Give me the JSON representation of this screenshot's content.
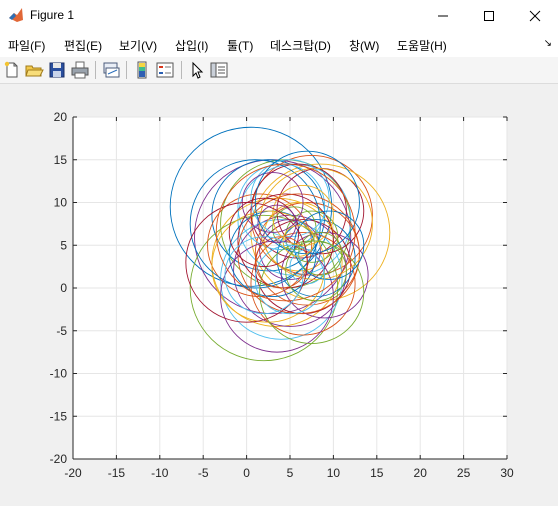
{
  "window": {
    "title": "Figure 1"
  },
  "menu": {
    "items": [
      "파일(F)",
      "편집(E)",
      "보기(V)",
      "삽입(I)",
      "툴(T)",
      "데스크탑(D)",
      "창(W)",
      "도움말(H)"
    ],
    "overflow_glyph": "↘"
  },
  "toolbar": {
    "buttons": [
      "new-figure-icon",
      "open-file-icon",
      "save-icon",
      "print-icon",
      "link-plot-icon",
      "colorbar-icon",
      "legend-icon",
      "pointer-icon",
      "property-editor-icon"
    ]
  },
  "colors": {
    "palette": [
      "#0072bd",
      "#d95319",
      "#edb120",
      "#7e2f8e",
      "#77ac30",
      "#4dbeee",
      "#a2142f"
    ],
    "axes_bg": "#ffffff",
    "grid": "#e6e6e6",
    "figure_bg": "#f0f0f0"
  },
  "chart_data": {
    "type": "line",
    "title": "",
    "xlabel": "",
    "ylabel": "",
    "xlim": [
      -20,
      30
    ],
    "ylim": [
      -20,
      20
    ],
    "xticks": [
      -20,
      -15,
      -10,
      -5,
      0,
      5,
      10,
      15,
      20,
      25,
      30
    ],
    "yticks": [
      -20,
      -15,
      -10,
      -5,
      0,
      5,
      10,
      15,
      20
    ],
    "grid": true,
    "circles": [
      {
        "cx": 0.5,
        "cy": 9.5,
        "r": 9.3
      },
      {
        "cx": 7.5,
        "cy": 8.5,
        "r": 7.0
      },
      {
        "cx": 8.5,
        "cy": 6.5,
        "r": 8.0
      },
      {
        "cx": 3.0,
        "cy": 6.0,
        "r": 9.0
      },
      {
        "cx": 4.5,
        "cy": 7.5,
        "r": 7.5
      },
      {
        "cx": 5.5,
        "cy": 8.0,
        "r": 6.5
      },
      {
        "cx": 6.0,
        "cy": 9.0,
        "r": 5.5
      },
      {
        "cx": 2.5,
        "cy": 8.5,
        "r": 6.5
      },
      {
        "cx": 7.0,
        "cy": 4.0,
        "r": 6.0
      },
      {
        "cx": 3.5,
        "cy": 3.0,
        "r": 7.5
      },
      {
        "cx": 5.0,
        "cy": 2.0,
        "r": 6.5
      },
      {
        "cx": 2.0,
        "cy": 0.0,
        "r": 8.5
      },
      {
        "cx": 4.0,
        "cy": 1.0,
        "r": 7.0
      },
      {
        "cx": 6.5,
        "cy": 2.5,
        "r": 5.5
      },
      {
        "cx": 8.0,
        "cy": 3.5,
        "r": 4.5
      },
      {
        "cx": 1.5,
        "cy": 5.0,
        "r": 6.0
      },
      {
        "cx": 6.0,
        "cy": 6.0,
        "r": 4.0
      },
      {
        "cx": 5.0,
        "cy": 4.5,
        "r": 3.5
      },
      {
        "cx": 7.5,
        "cy": 6.0,
        "r": 3.0
      },
      {
        "cx": 4.0,
        "cy": 9.5,
        "r": 5.0
      },
      {
        "cx": 8.5,
        "cy": 9.0,
        "r": 5.0
      },
      {
        "cx": 3.0,
        "cy": 4.0,
        "r": 5.0
      },
      {
        "cx": 6.5,
        "cy": 0.5,
        "r": 6.0
      },
      {
        "cx": 2.5,
        "cy": 2.5,
        "r": 6.5
      },
      {
        "cx": 9.0,
        "cy": 1.5,
        "r": 5.0
      },
      {
        "cx": 5.5,
        "cy": 7.0,
        "r": 2.5
      },
      {
        "cx": 7.0,
        "cy": 2.5,
        "r": 2.0
      },
      {
        "cx": 4.5,
        "cy": 5.5,
        "r": 5.5
      },
      {
        "cx": 1.0,
        "cy": 7.5,
        "r": 7.5
      },
      {
        "cx": 6.0,
        "cy": 4.0,
        "r": 7.0
      },
      {
        "cx": 8.0,
        "cy": 7.5,
        "r": 6.5
      },
      {
        "cx": 3.5,
        "cy": -1.0,
        "r": 6.5
      },
      {
        "cx": 7.5,
        "cy": -0.5,
        "r": 6.0
      },
      {
        "cx": 5.0,
        "cy": 10.5,
        "r": 4.5
      },
      {
        "cx": 2.0,
        "cy": 6.5,
        "r": 4.0
      },
      {
        "cx": 9.5,
        "cy": 5.0,
        "r": 4.0
      },
      {
        "cx": 4.0,
        "cy": 3.0,
        "r": 3.0
      },
      {
        "cx": 6.5,
        "cy": 8.5,
        "r": 3.5
      },
      {
        "cx": 3.0,
        "cy": 10.0,
        "r": 3.5
      },
      {
        "cx": 8.5,
        "cy": 4.0,
        "r": 2.5
      },
      {
        "cx": 5.0,
        "cy": 1.0,
        "r": 4.0
      },
      {
        "cx": 0.0,
        "cy": 3.0,
        "r": 7.0
      },
      {
        "cx": 7.0,
        "cy": 10.0,
        "r": 6.0
      },
      {
        "cx": 4.5,
        "cy": 6.5,
        "r": 8.0
      },
      {
        "cx": 6.0,
        "cy": 5.5,
        "r": 1.8
      },
      {
        "cx": 3.5,
        "cy": 7.5,
        "r": 2.2
      },
      {
        "cx": 8.0,
        "cy": 2.0,
        "r": 3.5
      },
      {
        "cx": 2.0,
        "cy": 1.5,
        "r": 4.5
      }
    ]
  }
}
